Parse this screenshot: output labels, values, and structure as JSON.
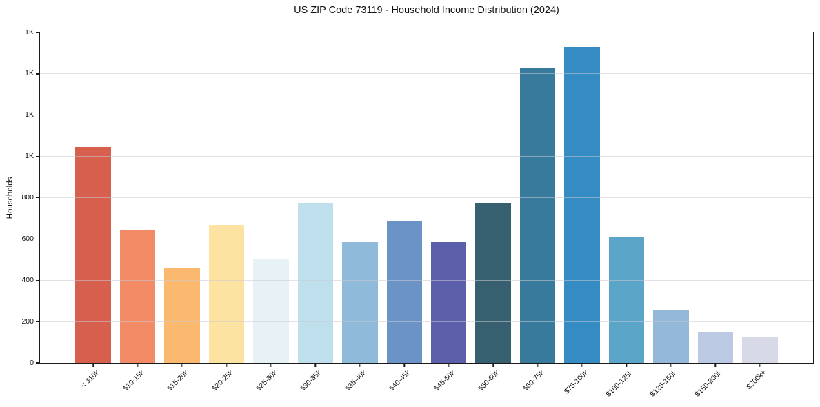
{
  "chart_data": {
    "type": "bar",
    "title": "US ZIP Code 73119 - Household Income Distribution (2024)",
    "xlabel": "",
    "ylabel": "Households",
    "ylim": [
      0,
      1600
    ],
    "ytick_interval": 200,
    "ytick_labels": [
      "0",
      "200",
      "400",
      "600",
      "800",
      "1K",
      "1K",
      "1K",
      "1K"
    ],
    "grid": "horizontal-above-bars",
    "legend": null,
    "categories": [
      "< $10k",
      "$10-15k",
      "$15-20k",
      "$20-25k",
      "$25-30k",
      "$30-35k",
      "$35-40k",
      "$40-45k",
      "$45-50k",
      "$50-60k",
      "$60-75k",
      "$75-100k",
      "$100-125k",
      "$125-150k",
      "$150-200k",
      "$200k+"
    ],
    "values": [
      1045,
      640,
      457,
      668,
      505,
      770,
      585,
      687,
      585,
      770,
      1425,
      1530,
      608,
      253,
      150,
      123
    ],
    "bar_colors": [
      "#d6604d",
      "#f28a66",
      "#fab96e",
      "#fce3a1",
      "#e7f1f6",
      "#bedfec",
      "#8fbada",
      "#6b93c5",
      "#5c60aa",
      "#36606f",
      "#377a9b",
      "#348cc2",
      "#5ba5c9",
      "#93b8d8",
      "#bbcae2",
      "#d8d9e6"
    ],
    "colors": {
      "background": "#ffffff",
      "spine": "#1a1a1a",
      "gridline": "#e5e5ec",
      "text": "#111111"
    }
  }
}
